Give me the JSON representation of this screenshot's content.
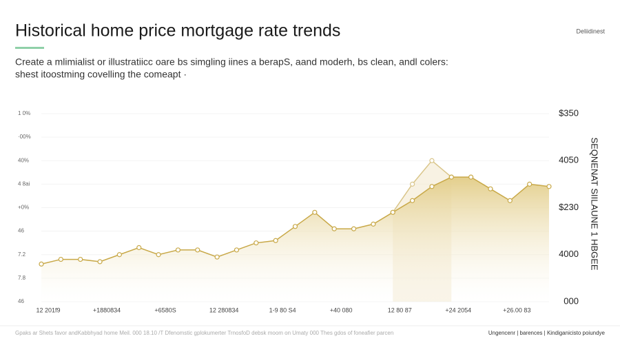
{
  "header": {
    "title": "Historical home price mortgage rate trends",
    "subtitle": [
      "Create a mlimialist  or illustratiicc oare bs simgling iines a berapS,  aand moderh,  bs clean,  andl colers:",
      "shest itoostming covelling the comeapt ·"
    ],
    "badge": "Deliidinest"
  },
  "chart_data": {
    "type": "line",
    "categories": [
      "12 201f9",
      null,
      null,
      "+1880834",
      null,
      null,
      "+6580S",
      null,
      null,
      "12 280834",
      null,
      null,
      "1-9 80 S4",
      null,
      null,
      "+40 080",
      null,
      null,
      "12 80 87",
      null,
      null,
      "+24 2054",
      null,
      null,
      "+26.00 83",
      null,
      null
    ],
    "series": [
      {
        "color": "#c8a847",
        "values": [
          1.6,
          1.8,
          1.8,
          1.7,
          2.0,
          2.3,
          2.0,
          2.2,
          2.2,
          1.9,
          2.2,
          2.5,
          2.6,
          3.2,
          3.8,
          3.1,
          3.1,
          3.3,
          3.8,
          4.3,
          4.9,
          5.3,
          5.3,
          4.8,
          4.3,
          5.0,
          4.9
        ]
      },
      {
        "color": "#d9c589",
        "values": [
          null,
          null,
          null,
          null,
          null,
          null,
          null,
          null,
          null,
          null,
          null,
          null,
          null,
          null,
          null,
          null,
          null,
          null,
          3.8,
          5.0,
          6.0,
          5.3,
          null,
          null,
          null,
          null,
          null
        ]
      }
    ],
    "ylim": [
      0,
      8
    ],
    "yticks": [
      {
        "value": 8,
        "label": "1 0%"
      },
      {
        "value": 7,
        "label": "·00%"
      },
      {
        "value": 6,
        "label": "40%"
      },
      {
        "value": 5,
        "label": "4 8ai"
      },
      {
        "value": 4,
        "label": "+0%"
      },
      {
        "value": 3,
        "label": "46"
      },
      {
        "value": 2,
        "label": "7.2"
      },
      {
        "value": 1,
        "label": "7.8"
      },
      {
        "value": 0,
        "label": "46"
      }
    ],
    "y2lim": [
      0,
      4
    ],
    "y2ticks": [
      {
        "value": 4,
        "label": "$350"
      },
      {
        "value": 3,
        "label": "4050"
      },
      {
        "value": 2,
        "label": "$230"
      },
      {
        "value": 1,
        "label": "4000"
      },
      {
        "value": 0,
        "label": "000"
      }
    ],
    "y2label": "SEQNENAT SIILAUNE 1 HBGEE",
    "grid": true
  },
  "footer": {
    "source": "Gpaks ar  Shets favor andKabbhyad home Meil. 000 18.10 /T Dfenomstic gplokumerter TrnosfoD debsk moom on Umaty 000 Thes gdos of foneafier parcen",
    "links": "Ungencenr | barences | Kindiganicisto poiundye"
  }
}
